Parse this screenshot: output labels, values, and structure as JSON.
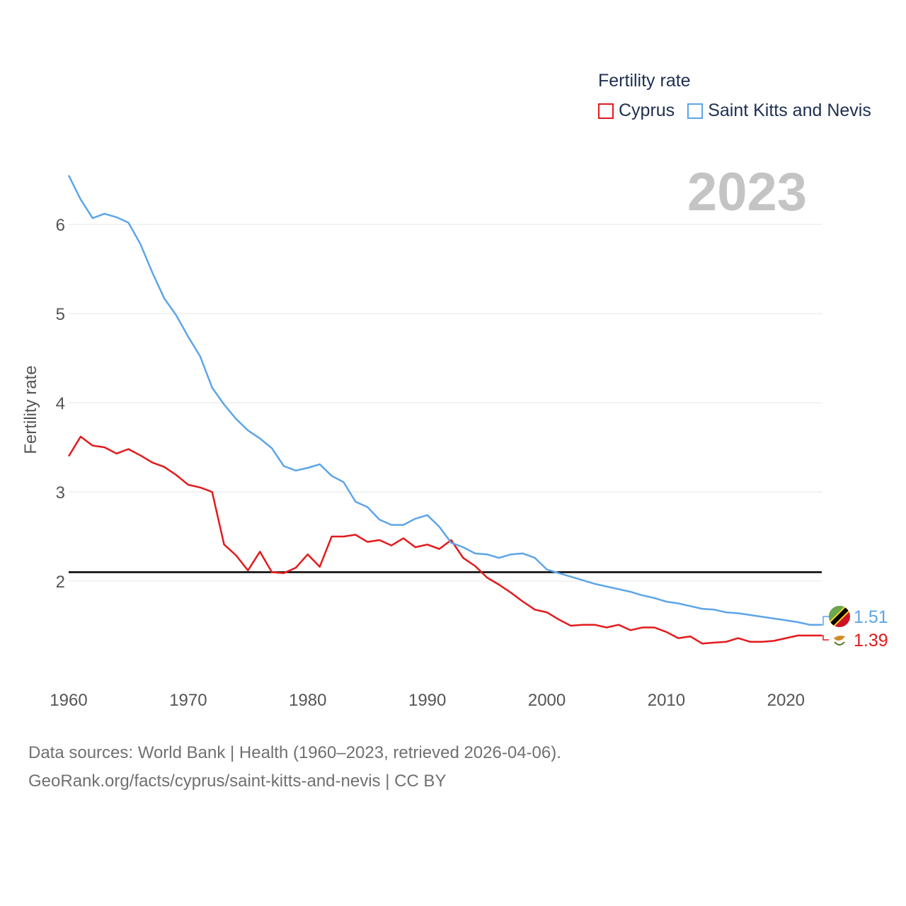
{
  "legend": {
    "title": "Fertility rate",
    "items": [
      {
        "label": "Cyprus",
        "color": "#e31a1c"
      },
      {
        "label": "Saint Kitts and Nevis",
        "color": "#5da5e8"
      }
    ]
  },
  "year_label": "2023",
  "footer": {
    "line1": "Data sources: World Bank | Health (1960–2023, retrieved 2026-04-06).",
    "line2": "GeoRank.org/facts/cyprus/saint-kitts-and-nevis | CC BY"
  },
  "chart_data": {
    "type": "line",
    "ylabel": "Fertility rate",
    "xlabel": "",
    "xlim": [
      1960,
      2023
    ],
    "ylim": [
      1,
      6.6
    ],
    "xticks": [
      1960,
      1970,
      1980,
      1990,
      2000,
      2010,
      2020
    ],
    "yticks": [
      2,
      3,
      4,
      5,
      6
    ],
    "reference_line": 2.1,
    "x": [
      1960,
      1961,
      1962,
      1963,
      1964,
      1965,
      1966,
      1967,
      1968,
      1969,
      1970,
      1971,
      1972,
      1973,
      1974,
      1975,
      1976,
      1977,
      1978,
      1979,
      1980,
      1981,
      1982,
      1983,
      1984,
      1985,
      1986,
      1987,
      1988,
      1989,
      1990,
      1991,
      1992,
      1993,
      1994,
      1995,
      1996,
      1997,
      1998,
      1999,
      2000,
      2001,
      2002,
      2003,
      2004,
      2005,
      2006,
      2007,
      2008,
      2009,
      2010,
      2011,
      2012,
      2013,
      2014,
      2015,
      2016,
      2017,
      2018,
      2019,
      2020,
      2021,
      2022,
      2023
    ],
    "series": [
      {
        "name": "Cyprus",
        "color": "#e31a1c",
        "end_label": "1.39",
        "values": [
          3.4,
          3.62,
          3.52,
          3.5,
          3.43,
          3.48,
          3.41,
          3.33,
          3.28,
          3.19,
          3.08,
          3.05,
          3.0,
          2.41,
          2.29,
          2.12,
          2.33,
          2.1,
          2.09,
          2.15,
          2.3,
          2.16,
          2.5,
          2.5,
          2.52,
          2.44,
          2.46,
          2.4,
          2.48,
          2.38,
          2.41,
          2.36,
          2.46,
          2.26,
          2.17,
          2.04,
          1.96,
          1.87,
          1.77,
          1.68,
          1.65,
          1.57,
          1.5,
          1.51,
          1.51,
          1.48,
          1.51,
          1.45,
          1.48,
          1.48,
          1.43,
          1.36,
          1.38,
          1.3,
          1.31,
          1.32,
          1.36,
          1.32,
          1.32,
          1.33,
          1.36,
          1.39,
          1.39,
          1.39
        ]
      },
      {
        "name": "Saint Kitts and Nevis",
        "color": "#5da5e8",
        "end_label": "1.51",
        "values": [
          6.55,
          6.28,
          6.07,
          6.12,
          6.08,
          6.02,
          5.78,
          5.46,
          5.17,
          4.98,
          4.74,
          4.52,
          4.17,
          3.98,
          3.82,
          3.69,
          3.6,
          3.49,
          3.29,
          3.24,
          3.27,
          3.31,
          3.18,
          3.11,
          2.89,
          2.83,
          2.69,
          2.63,
          2.63,
          2.7,
          2.74,
          2.61,
          2.43,
          2.38,
          2.31,
          2.3,
          2.26,
          2.3,
          2.31,
          2.26,
          2.13,
          2.09,
          2.05,
          2.01,
          1.97,
          1.94,
          1.91,
          1.88,
          1.84,
          1.81,
          1.77,
          1.75,
          1.72,
          1.69,
          1.68,
          1.65,
          1.64,
          1.62,
          1.6,
          1.58,
          1.56,
          1.54,
          1.51,
          1.51
        ]
      }
    ]
  }
}
